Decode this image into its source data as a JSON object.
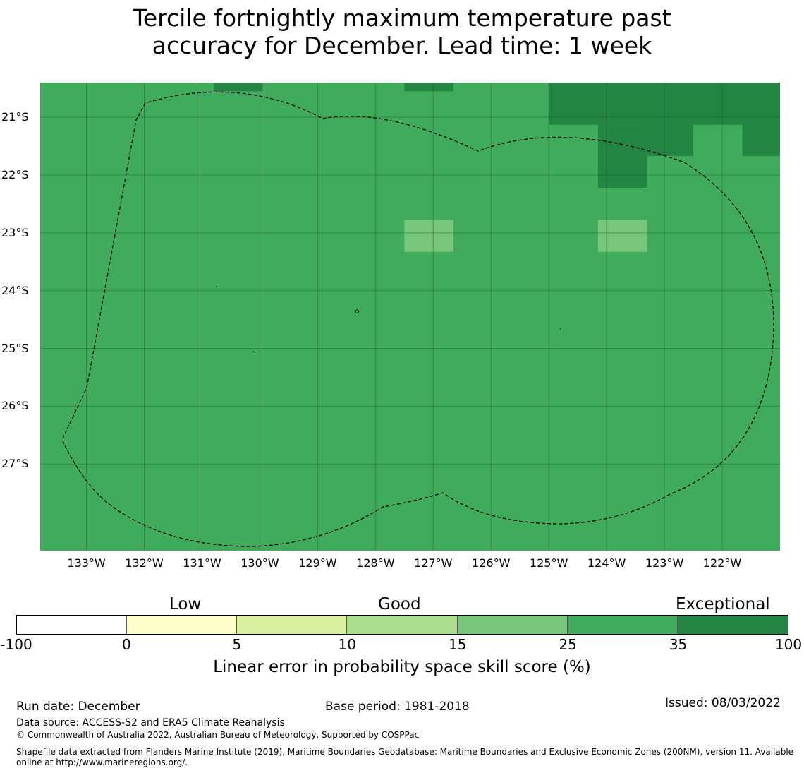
{
  "title": {
    "line1": "Tercile fortnightly maximum temperature past",
    "line2": "accuracy for December. Lead time: 1 week"
  },
  "map": {
    "background_color": "#41ab5d",
    "boundary_style": "dashed black line",
    "latitude_labels": [
      "21°S",
      "22°S",
      "23°S",
      "24°S",
      "25°S",
      "26°S",
      "27°S"
    ],
    "latitude_values": [
      -21,
      -22,
      -23,
      -24,
      -25,
      -26,
      -27
    ],
    "longitude_labels": [
      "133°W",
      "132°W",
      "131°W",
      "130°W",
      "129°W",
      "128°W",
      "127°W",
      "126°W",
      "125°W",
      "124°W",
      "123°W",
      "122°W"
    ],
    "longitude_values": [
      -133,
      -132,
      -131,
      -130,
      -129,
      -128,
      -127,
      -126,
      -125,
      -124,
      -123,
      -122
    ],
    "extent": {
      "lon_min": -133.8,
      "lon_max": -121,
      "lat_min": -28.5,
      "lat_max": -20.4
    },
    "skill_cells": [
      {
        "lon_min": -130.8,
        "lon_max": -129.95,
        "lat_min": -20.55,
        "lat_max": -20.4,
        "category": "35-100"
      },
      {
        "lon_min": -127.5,
        "lon_max": -126.65,
        "lat_min": -20.55,
        "lat_max": -20.4,
        "category": "35-100"
      },
      {
        "lon_min": -125.0,
        "lon_max": -123.3,
        "lat_min": -21.13,
        "lat_max": -20.4,
        "category": "35-100"
      },
      {
        "lon_min": -123.3,
        "lon_max": -122.5,
        "lat_min": -21.67,
        "lat_max": -20.4,
        "category": "35-100"
      },
      {
        "lon_min": -122.5,
        "lon_max": -121.65,
        "lat_min": -21.13,
        "lat_max": -20.4,
        "category": "35-100"
      },
      {
        "lon_min": -121.65,
        "lon_max": -121.0,
        "lat_min": -21.67,
        "lat_max": -20.4,
        "category": "35-100"
      },
      {
        "lon_min": -124.15,
        "lon_max": -123.3,
        "lat_min": -22.22,
        "lat_max": -21.13,
        "category": "35-100"
      },
      {
        "lon_min": -127.5,
        "lon_max": -126.65,
        "lat_min": -23.33,
        "lat_max": -22.78,
        "category": "15-25"
      },
      {
        "lon_min": -124.15,
        "lon_max": -123.3,
        "lat_min": -23.33,
        "lat_max": -22.78,
        "category": "15-25"
      }
    ]
  },
  "colorbar": {
    "categories": [
      {
        "label": "Low"
      },
      {
        "label": "Good"
      },
      {
        "label": "Exceptional"
      }
    ],
    "segments": [
      {
        "from": "-100",
        "to": "0",
        "color": "#ffffff"
      },
      {
        "from": "0",
        "to": "5",
        "color": "#ffffcc"
      },
      {
        "from": "5",
        "to": "10",
        "color": "#d9f0a3"
      },
      {
        "from": "10",
        "to": "15",
        "color": "#addd8e"
      },
      {
        "from": "15",
        "to": "25",
        "color": "#78c679"
      },
      {
        "from": "25",
        "to": "35",
        "color": "#41ab5d"
      },
      {
        "from": "35",
        "to": "100",
        "color": "#238443"
      }
    ],
    "ticks": [
      "-100",
      "0",
      "5",
      "10",
      "15",
      "25",
      "35",
      "100"
    ],
    "label": "Linear error in probability space skill score (%)"
  },
  "footer": {
    "run_date": "Run date: December",
    "base_period": "Base period: 1981-2018",
    "issued": "Issued: 08/03/2022",
    "data_source": "Data source: ACCESS-S2 and ERA5 Climate Reanalysis",
    "copyright": "© Commonwealth of Australia 2022, Australian Bureau of Meteorology, Supported by COSPPac",
    "shapefile_note": "Shapefile data extracted from Flanders Marine Institute (2019), Maritime Boundaries Geodatabase: Maritime Boundaries and Exclusive Economic Zones (200NM), version 11. Available online at http://www.marineregions.org/."
  }
}
